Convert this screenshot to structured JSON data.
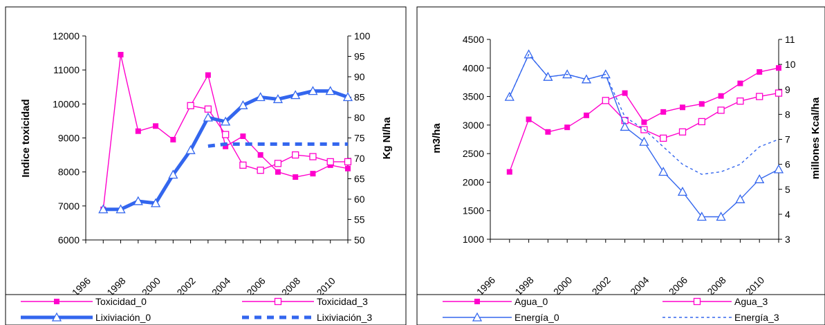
{
  "charts": [
    {
      "x_ticks": [
        "1996",
        "1998",
        "2000",
        "2002",
        "2004",
        "2006",
        "2008",
        "2010"
      ],
      "left_axis": {
        "label": "Indice toxicidad",
        "min": 6000,
        "max": 12000,
        "step": 1000,
        "ticks": [
          "6000",
          "7000",
          "8000",
          "9000",
          "10000",
          "11000",
          "12000"
        ]
      },
      "right_axis": {
        "label": "Kg NI/ha",
        "min": 50,
        "max": 100,
        "step": 5,
        "ticks": [
          "50",
          "55",
          "60",
          "65",
          "70",
          "75",
          "80",
          "85",
          "90",
          "95",
          "100"
        ]
      },
      "legend": [
        "Toxicidad_0",
        "Toxicidad_3",
        "Lixiviación_0",
        "Lixiviación_3"
      ]
    },
    {
      "x_ticks": [
        "1996",
        "1998",
        "2000",
        "2002",
        "2004",
        "2006",
        "2008",
        "2010"
      ],
      "left_axis": {
        "label": "m3/ha",
        "min": 1000,
        "max": 4500,
        "step": 500,
        "ticks": [
          "1000",
          "1500",
          "2000",
          "2500",
          "3000",
          "3500",
          "4000",
          "4500"
        ]
      },
      "right_axis": {
        "label": "millones Kcal/ha",
        "min": 3,
        "max": 11,
        "step": 1,
        "ticks": [
          "3",
          "4",
          "5",
          "6",
          "7",
          "8",
          "9",
          "10",
          "11"
        ]
      },
      "legend": [
        "Agua_0",
        "Agua_3",
        "Energía_0",
        "Energía_3"
      ]
    }
  ],
  "chart_data": [
    {
      "type": "line",
      "x": [
        1997,
        1998,
        1999,
        2000,
        2001,
        2002,
        2003,
        2004,
        2005,
        2006,
        2007,
        2008,
        2009,
        2010,
        2011
      ],
      "xlim": [
        1996,
        2011
      ],
      "ylim_left": [
        6000,
        12000
      ],
      "ylim_right": [
        50,
        100
      ],
      "series": [
        {
          "name": "Toxicidad_0",
          "axis": "left",
          "color": "#ff00cc",
          "marker": "filled-square",
          "dash": false,
          "values": [
            6900,
            11450,
            9200,
            9350,
            8950,
            9950,
            10850,
            8750,
            9050,
            8500,
            8000,
            7850,
            7950,
            8200,
            8100
          ]
        },
        {
          "name": "Toxicidad_3",
          "axis": "left",
          "color": "#ff00cc",
          "marker": "open-square",
          "dash": false,
          "values": [
            null,
            null,
            null,
            null,
            null,
            9950,
            9850,
            9100,
            8200,
            8050,
            8250,
            8500,
            8450,
            8300,
            8300
          ]
        },
        {
          "name": "Lixiviación_0",
          "axis": "right",
          "color": "#3366ee",
          "marker": "open-triangle",
          "dash": false,
          "values": [
            57.5,
            57.5,
            59.5,
            59,
            66,
            72,
            80,
            79,
            83,
            85,
            84.5,
            85.5,
            86.5,
            86.5,
            85
          ]
        },
        {
          "name": "Lixiviación_3",
          "axis": "right",
          "color": "#3366ee",
          "marker": "none",
          "dash": true,
          "values": [
            null,
            null,
            null,
            null,
            null,
            null,
            73,
            73.5,
            73.5,
            73.5,
            73.5,
            73.5,
            73.5,
            73.5,
            73.5
          ]
        }
      ]
    },
    {
      "type": "line",
      "x": [
        1997,
        1998,
        1999,
        2000,
        2001,
        2002,
        2003,
        2004,
        2005,
        2006,
        2007,
        2008,
        2009,
        2010,
        2011
      ],
      "xlim": [
        1996,
        2011
      ],
      "ylim_left": [
        1000,
        4500
      ],
      "ylim_right": [
        3,
        11
      ],
      "series": [
        {
          "name": "Agua_0",
          "axis": "left",
          "color": "#ff00cc",
          "marker": "filled-square",
          "dash": false,
          "values": [
            2180,
            3100,
            2880,
            2960,
            3170,
            3430,
            3560,
            3050,
            3230,
            3310,
            3370,
            3510,
            3730,
            3930,
            4000
          ]
        },
        {
          "name": "Agua_3",
          "axis": "left",
          "color": "#ff00cc",
          "marker": "open-square",
          "dash": false,
          "values": [
            null,
            null,
            null,
            null,
            null,
            3430,
            3080,
            2920,
            2770,
            2880,
            3060,
            3260,
            3420,
            3500,
            3560
          ]
        },
        {
          "name": "Energía_0",
          "axis": "right",
          "color": "#3366ee",
          "marker": "open-triangle",
          "dash": false,
          "values": [
            8.7,
            10.4,
            9.5,
            9.6,
            9.4,
            9.6,
            7.5,
            6.9,
            5.7,
            4.9,
            3.9,
            3.9,
            4.6,
            5.4,
            5.8
          ]
        },
        {
          "name": "Energía_3",
          "axis": "right",
          "color": "#3366ee",
          "marker": "none",
          "dash": true,
          "values": [
            8.7,
            10.4,
            9.5,
            9.6,
            9.4,
            9.6,
            7.9,
            7.4,
            6.7,
            6.0,
            5.6,
            5.7,
            6.0,
            6.7,
            7.0
          ]
        }
      ]
    }
  ]
}
